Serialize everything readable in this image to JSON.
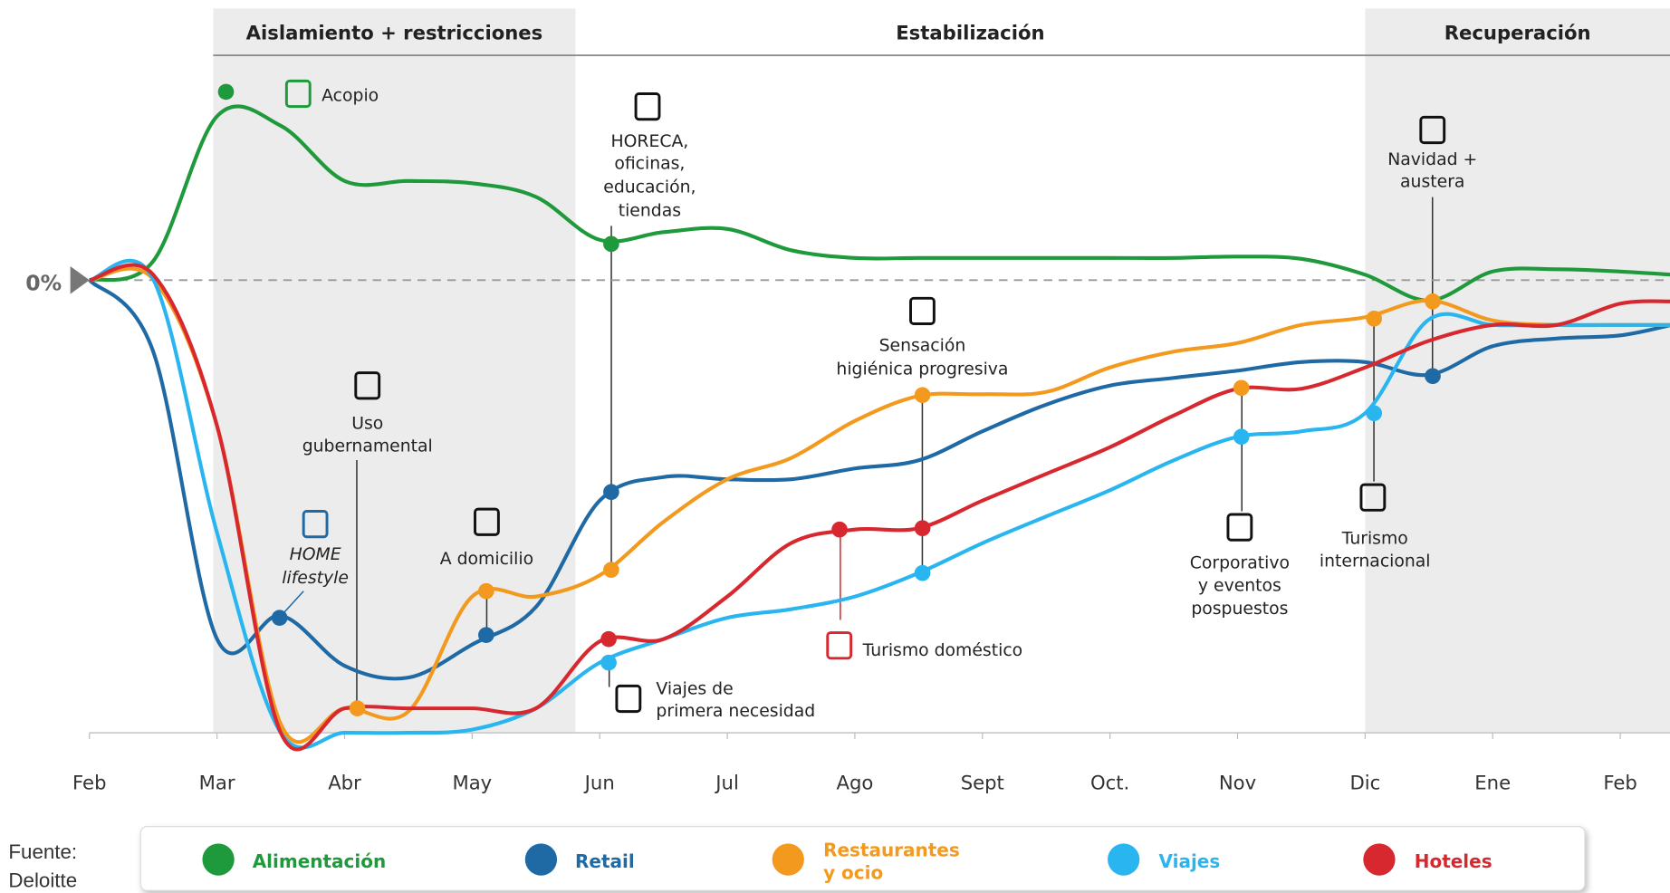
{
  "chart_data": {
    "type": "line",
    "phases": [
      {
        "name": "Aislamiento + restricciones",
        "start": 0.97,
        "end": 3.81,
        "shaded": true
      },
      {
        "name": "Estabilización",
        "start": 3.81,
        "end": 10.0,
        "shaded": false
      },
      {
        "name": "Recuperación",
        "start": 10.0,
        "end": 12.39,
        "shaded": true
      }
    ],
    "x": [
      0,
      0.5,
      1,
      1.5,
      2,
      2.5,
      3,
      3.5,
      4,
      4.5,
      5,
      5.5,
      6,
      6.5,
      7,
      7.5,
      8,
      8.5,
      9,
      9.5,
      10,
      10.5,
      11,
      11.5,
      12,
      12.4
    ],
    "xlim": [
      0,
      12.39
    ],
    "xticks": [
      {
        "value": 0,
        "label": "Feb"
      },
      {
        "value": 1,
        "label": "Mar"
      },
      {
        "value": 2,
        "label": "Abr"
      },
      {
        "value": 3,
        "label": "May"
      },
      {
        "value": 4,
        "label": "Jun"
      },
      {
        "value": 5,
        "label": "Jul"
      },
      {
        "value": 6,
        "label": "Ago"
      },
      {
        "value": 7,
        "label": "Sept"
      },
      {
        "value": 8,
        "label": "Oct."
      },
      {
        "value": 9,
        "label": "Nov"
      },
      {
        "value": 10,
        "label": "Dic"
      },
      {
        "value": 11,
        "label": "Ene"
      },
      {
        "value": 12,
        "label": "Feb"
      }
    ],
    "ylim": [
      -100,
      45
    ],
    "yticks": [
      {
        "value": 0,
        "label": "0%"
      }
    ],
    "series": [
      {
        "name": "Alimentación",
        "color": "#1e9a3c",
        "values": [
          0,
          4.2,
          36.2,
          34.1,
          21.9,
          21.9,
          21.4,
          18.4,
          8.9,
          10.6,
          11.3,
          6.6,
          4.9,
          4.9,
          4.9,
          4.9,
          4.9,
          4.9,
          5.2,
          4.7,
          1.2,
          -4.5,
          1.9,
          2.4,
          1.9,
          1.2
        ]
      },
      {
        "name": "Retail",
        "color": "#1f6aa5",
        "values": [
          0,
          -15.8,
          -79.3,
          -74.1,
          -85.2,
          -87.8,
          -80.5,
          -72.2,
          -48.7,
          -43.5,
          -44,
          -44,
          -41.6,
          -39.8,
          -33.4,
          -27.5,
          -23.3,
          -21.6,
          -20,
          -18.1,
          -18.1,
          -20.9,
          -14.6,
          -12.9,
          -12.2,
          -9.9
        ]
      },
      {
        "name": "Restaurantes y ocio",
        "color": "#f39a1e",
        "values": [
          0,
          0.2,
          -32.2,
          -98.1,
          -94.6,
          -95.3,
          -69.9,
          -69.9,
          -65.2,
          -53.4,
          -44,
          -39.3,
          -31.1,
          -25.6,
          -25.2,
          -24.7,
          -19.3,
          -15.8,
          -13.9,
          -9.9,
          -8.2,
          -4.5,
          -8.9,
          -9.9,
          -9.9,
          -9.9
        ]
      },
      {
        "name": "Viajes",
        "color": "#29b5f0",
        "values": [
          0,
          0.2,
          -55.8,
          -100,
          -100,
          -100,
          -99.3,
          -94.6,
          -84.5,
          -79.3,
          -74.6,
          -72.7,
          -69.9,
          -64.7,
          -58.1,
          -52.2,
          -46.4,
          -39.8,
          -34.6,
          -33.4,
          -29.4,
          -8.7,
          -9.9,
          -9.9,
          -9.9,
          -9.9
        ]
      },
      {
        "name": "Hoteles",
        "color": "#d7282f",
        "values": [
          0,
          1.2,
          -32.2,
          -100,
          -94.6,
          -94.6,
          -94.6,
          -94.6,
          -79.8,
          -79.3,
          -69.9,
          -58.1,
          -55.1,
          -54.8,
          -48.7,
          -42.8,
          -36.9,
          -29.9,
          -24,
          -24,
          -19.3,
          -13.4,
          -9.9,
          -9.9,
          -5.2,
          -4.7
        ]
      }
    ],
    "markers": [
      {
        "x": 1.07,
        "y": 41.6,
        "color": "#1e9a3c"
      },
      {
        "x": 1.49,
        "y": -74.6,
        "color": "#1f6aa5"
      },
      {
        "x": 2.1,
        "y": -94.6,
        "color": "#f39a1e"
      },
      {
        "x": 3.11,
        "y": -78.4,
        "color": "#1f6aa5"
      },
      {
        "x": 3.11,
        "y": -68.7,
        "color": "#f39a1e"
      },
      {
        "x": 4.09,
        "y": 8,
        "color": "#1e9a3c"
      },
      {
        "x": 4.09,
        "y": -46.8,
        "color": "#1f6aa5"
      },
      {
        "x": 4.09,
        "y": -64,
        "color": "#f39a1e"
      },
      {
        "x": 4.07,
        "y": -79.3,
        "color": "#d7282f"
      },
      {
        "x": 4.07,
        "y": -84.5,
        "color": "#29b5f0"
      },
      {
        "x": 5.88,
        "y": -55.1,
        "color": "#d7282f"
      },
      {
        "x": 6.53,
        "y": -25.4,
        "color": "#f39a1e"
      },
      {
        "x": 6.53,
        "y": -54.8,
        "color": "#d7282f"
      },
      {
        "x": 6.53,
        "y": -64.7,
        "color": "#29b5f0"
      },
      {
        "x": 9.03,
        "y": -23.8,
        "color": "#f39a1e"
      },
      {
        "x": 9.03,
        "y": -34.6,
        "color": "#29b5f0"
      },
      {
        "x": 10.07,
        "y": -8.5,
        "color": "#f39a1e"
      },
      {
        "x": 10.07,
        "y": -29.4,
        "color": "#29b5f0"
      },
      {
        "x": 10.53,
        "y": -4.7,
        "color": "#f39a1e"
      },
      {
        "x": 10.53,
        "y": -21.2,
        "color": "#1f6aa5"
      }
    ],
    "annotations": [
      {
        "text": [
          "Acopio"
        ],
        "color": "#1e9a3c"
      },
      {
        "text": [
          "HORECA,",
          "oficinas,",
          "educación,",
          "tiendas"
        ]
      },
      {
        "text": [
          "Uso",
          "gubernamental"
        ]
      },
      {
        "text": [
          "HOME",
          "lifestyle"
        ],
        "color": "#1f6aa5",
        "italic": true
      },
      {
        "text": [
          "A domicilio"
        ]
      },
      {
        "text": [
          "Viajes de",
          "primera necesidad"
        ]
      },
      {
        "text": [
          "Turismo doméstico"
        ],
        "color": "#d7282f"
      },
      {
        "text": [
          "Sensación",
          "higiénica progresiva"
        ]
      },
      {
        "text": [
          "Corporativo",
          "y eventos",
          "pospuestos"
        ]
      },
      {
        "text": [
          "Turismo",
          "internacional"
        ]
      },
      {
        "text": [
          "Navidad +",
          "austera"
        ]
      }
    ],
    "source": [
      "Fuente:",
      "Deloitte"
    ]
  }
}
